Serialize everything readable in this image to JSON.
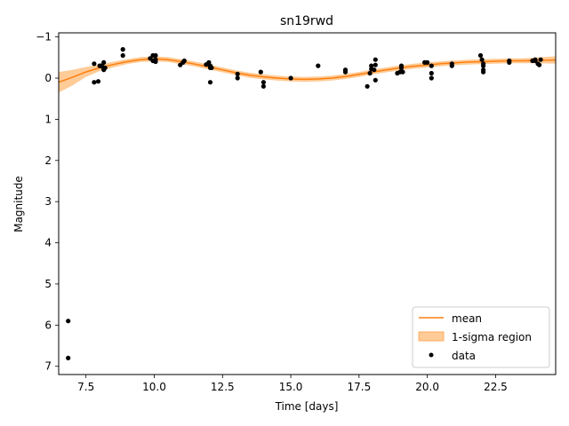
{
  "chart_data": {
    "type": "scatter",
    "title": "sn19rwd",
    "xlabel": "Time [days]",
    "ylabel": "Magnitude",
    "xlim": [
      6.5,
      24.7
    ],
    "ylim": [
      7.2,
      -1.1
    ],
    "y_inverted": true,
    "grid": false,
    "legend_position": "lower-right",
    "xticks": [
      7.5,
      10.0,
      12.5,
      15.0,
      17.5,
      20.0,
      22.5
    ],
    "xtick_labels": [
      "7.5",
      "10.0",
      "12.5",
      "15.0",
      "17.5",
      "20.0",
      "22.5"
    ],
    "yticks": [
      -1,
      0,
      1,
      2,
      3,
      4,
      5,
      6,
      7
    ],
    "ytick_labels": [
      "−1",
      "0",
      "1",
      "2",
      "3",
      "4",
      "5",
      "6",
      "7"
    ],
    "legend": [
      "mean",
      "1-sigma region",
      "data"
    ],
    "colors": {
      "mean": "#ff7f0e",
      "band": "#ffbe7d",
      "data": "#000000"
    },
    "series": [
      {
        "name": "mean",
        "kind": "line",
        "x": [
          6.5,
          7.0,
          7.5,
          8.0,
          8.5,
          9.0,
          9.5,
          10.0,
          10.5,
          11.0,
          11.5,
          12.0,
          12.5,
          13.0,
          13.5,
          14.0,
          14.5,
          15.0,
          15.5,
          16.0,
          16.5,
          17.0,
          17.5,
          18.0,
          18.5,
          19.0,
          19.5,
          20.0,
          20.5,
          21.0,
          21.5,
          22.0,
          22.5,
          23.0,
          23.5,
          24.0,
          24.7
        ],
        "y": [
          0.1,
          -0.02,
          -0.15,
          -0.25,
          -0.33,
          -0.4,
          -0.45,
          -0.47,
          -0.45,
          -0.4,
          -0.34,
          -0.27,
          -0.2,
          -0.13,
          -0.07,
          -0.03,
          0.0,
          0.02,
          0.03,
          0.02,
          0.0,
          -0.04,
          -0.09,
          -0.15,
          -0.2,
          -0.25,
          -0.29,
          -0.32,
          -0.35,
          -0.37,
          -0.39,
          -0.4,
          -0.41,
          -0.42,
          -0.42,
          -0.43,
          -0.44
        ]
      },
      {
        "name": "1-sigma region",
        "kind": "band",
        "x": [
          6.5,
          7.0,
          7.5,
          8.0,
          8.5,
          9.0,
          9.5,
          10.0,
          10.5,
          11.0,
          11.5,
          12.0,
          12.5,
          13.0,
          13.5,
          14.0,
          14.5,
          15.0,
          15.5,
          16.0,
          16.5,
          17.0,
          17.5,
          18.0,
          18.5,
          19.0,
          19.5,
          20.0,
          20.5,
          21.0,
          21.5,
          22.0,
          22.5,
          23.0,
          23.5,
          24.0,
          24.7
        ],
        "y_low": [
          -0.15,
          -0.2,
          -0.27,
          -0.33,
          -0.4,
          -0.46,
          -0.51,
          -0.53,
          -0.51,
          -0.46,
          -0.4,
          -0.33,
          -0.26,
          -0.19,
          -0.13,
          -0.09,
          -0.06,
          -0.04,
          -0.03,
          -0.04,
          -0.06,
          -0.1,
          -0.15,
          -0.21,
          -0.26,
          -0.31,
          -0.35,
          -0.38,
          -0.41,
          -0.43,
          -0.45,
          -0.46,
          -0.47,
          -0.48,
          -0.48,
          -0.5,
          -0.53
        ],
        "y_high": [
          0.35,
          0.18,
          -0.03,
          -0.17,
          -0.26,
          -0.34,
          -0.39,
          -0.41,
          -0.39,
          -0.34,
          -0.28,
          -0.21,
          -0.14,
          -0.07,
          -0.01,
          0.03,
          0.06,
          0.08,
          0.09,
          0.08,
          0.06,
          0.02,
          -0.03,
          -0.09,
          -0.14,
          -0.19,
          -0.23,
          -0.26,
          -0.29,
          -0.31,
          -0.33,
          -0.34,
          -0.35,
          -0.36,
          -0.36,
          -0.36,
          -0.35
        ]
      },
      {
        "name": "data",
        "kind": "points",
        "points": [
          [
            6.85,
            5.9
          ],
          [
            6.85,
            6.8
          ],
          [
            7.8,
            -0.35
          ],
          [
            7.8,
            0.1
          ],
          [
            7.95,
            0.08
          ],
          [
            8.0,
            -0.3
          ],
          [
            8.05,
            -0.3
          ],
          [
            8.1,
            -0.28
          ],
          [
            8.15,
            -0.38
          ],
          [
            8.15,
            -0.2
          ],
          [
            8.2,
            -0.25
          ],
          [
            8.85,
            -0.55
          ],
          [
            8.85,
            -0.7
          ],
          [
            9.85,
            -0.48
          ],
          [
            9.95,
            -0.42
          ],
          [
            9.95,
            -0.55
          ],
          [
            10.05,
            -0.4
          ],
          [
            10.05,
            -0.45
          ],
          [
            10.05,
            -0.55
          ],
          [
            10.95,
            -0.32
          ],
          [
            11.05,
            -0.38
          ],
          [
            11.1,
            -0.42
          ],
          [
            11.9,
            -0.33
          ],
          [
            12.0,
            -0.38
          ],
          [
            12.05,
            -0.25
          ],
          [
            12.05,
            -0.3
          ],
          [
            12.1,
            -0.25
          ],
          [
            12.05,
            0.1
          ],
          [
            13.05,
            -0.1
          ],
          [
            13.05,
            0.0
          ],
          [
            13.9,
            -0.15
          ],
          [
            14.0,
            0.1
          ],
          [
            14.0,
            0.2
          ],
          [
            15.0,
            0.0
          ],
          [
            16.0,
            -0.3
          ],
          [
            17.0,
            -0.15
          ],
          [
            17.0,
            -0.2
          ],
          [
            17.8,
            0.2
          ],
          [
            17.9,
            -0.12
          ],
          [
            17.95,
            -0.22
          ],
          [
            17.95,
            -0.3
          ],
          [
            18.05,
            -0.2
          ],
          [
            18.1,
            -0.32
          ],
          [
            18.1,
            -0.45
          ],
          [
            18.1,
            0.05
          ],
          [
            18.9,
            -0.12
          ],
          [
            19.0,
            -0.15
          ],
          [
            19.05,
            -0.25
          ],
          [
            19.05,
            -0.3
          ],
          [
            19.1,
            -0.15
          ],
          [
            19.9,
            -0.38
          ],
          [
            20.0,
            -0.38
          ],
          [
            20.15,
            -0.3
          ],
          [
            20.15,
            -0.12
          ],
          [
            20.15,
            0.0
          ],
          [
            20.9,
            -0.3
          ],
          [
            20.9,
            -0.35
          ],
          [
            21.95,
            -0.55
          ],
          [
            22.0,
            -0.45
          ],
          [
            22.05,
            -0.3
          ],
          [
            22.05,
            -0.2
          ],
          [
            22.05,
            -0.15
          ],
          [
            22.05,
            -0.35
          ],
          [
            23.0,
            -0.38
          ],
          [
            23.0,
            -0.42
          ],
          [
            23.85,
            -0.42
          ],
          [
            23.95,
            -0.42
          ],
          [
            23.95,
            -0.45
          ],
          [
            24.05,
            -0.35
          ],
          [
            24.1,
            -0.32
          ],
          [
            24.15,
            -0.45
          ]
        ]
      }
    ]
  }
}
